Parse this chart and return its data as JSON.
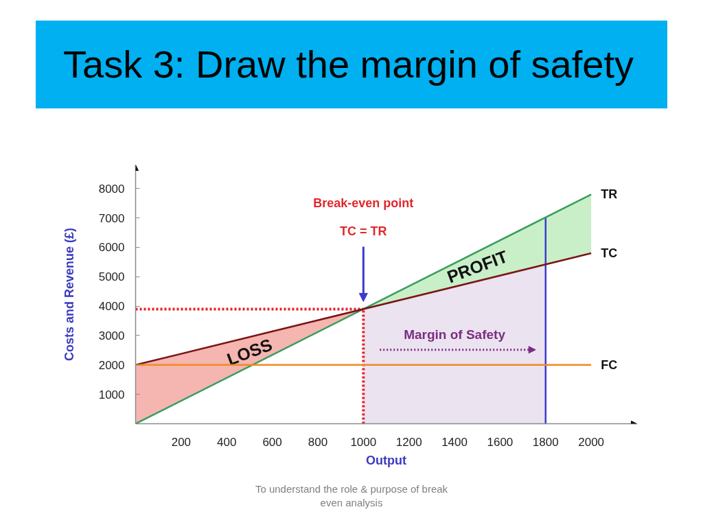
{
  "chart_data": {
    "type": "line",
    "title": "Task 3: Draw the margin of safety",
    "xlabel": "Output",
    "ylabel": "Costs and Revenue (£)",
    "xlim": [
      0,
      2200
    ],
    "ylim": [
      0,
      8800
    ],
    "xticks": [
      200,
      400,
      600,
      800,
      1000,
      1200,
      1400,
      1600,
      1800,
      2000
    ],
    "yticks": [
      1000,
      2000,
      3000,
      4000,
      5000,
      6000,
      7000,
      8000
    ],
    "series": [
      {
        "name": "LOSS",
        "type": "area",
        "x": [
          0,
          1000
        ],
        "values": [
          null,
          null
        ],
        "lower": [
          0,
          3900
        ],
        "upper": [
          2000,
          3900
        ]
      },
      {
        "name": "PROFIT",
        "type": "area",
        "x": [
          1000,
          2000
        ],
        "values": [
          null,
          null
        ],
        "lower": [
          3900,
          5800
        ],
        "upper": [
          3900,
          7800
        ]
      },
      {
        "name": "Margin of Safety",
        "type": "area",
        "x": [
          1000,
          1800
        ],
        "values": [
          null,
          null
        ],
        "lower": [
          0,
          0
        ],
        "upper": [
          3900,
          5420
        ]
      },
      {
        "name": "TR",
        "color": "#3a9d5d",
        "x": [
          0,
          2000
        ],
        "values": [
          0,
          7800
        ]
      },
      {
        "name": "TC",
        "color": "#7b1515",
        "x": [
          0,
          2000
        ],
        "values": [
          2000,
          5800
        ]
      },
      {
        "name": "FC",
        "color": "#f28a20",
        "x": [
          0,
          2000
        ],
        "values": [
          2000,
          2000
        ]
      }
    ],
    "ref_lines": [
      {
        "axis": "x",
        "value": 1000,
        "color": "#e8202a",
        "line_style": "dotted"
      },
      {
        "axis": "y",
        "value": 3900,
        "color": "#e8202a",
        "line_style": "dotted"
      },
      {
        "axis": "x",
        "value": 1800,
        "color": "#3c3ccc",
        "line_style": "solid"
      }
    ],
    "annotations": [
      "Break-even point",
      "TC = TR",
      "To understand the role & purpose of break even analysis"
    ]
  }
}
